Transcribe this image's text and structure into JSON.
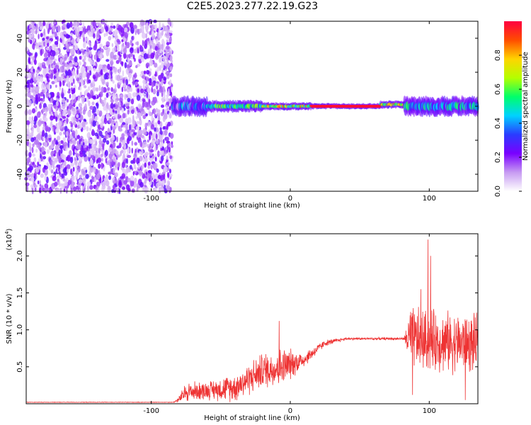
{
  "title": "C2E5.2023.277.22.19.G23",
  "chart_data": [
    {
      "type": "heatmap",
      "xlabel": "Height of straight line (km)",
      "ylabel": "Frequency (Hz)",
      "xlim": [
        -190,
        135
      ],
      "ylim": [
        -50,
        50
      ],
      "xticks": [
        -100,
        0,
        100
      ],
      "xtick_labels": [
        "-100",
        "0",
        "100"
      ],
      "yticks": [
        -40,
        -20,
        0,
        20,
        40
      ],
      "ytick_labels": [
        "-40",
        "-20",
        "0",
        "20",
        "40"
      ],
      "colorbar": {
        "label": "Normalized spectral amplitude",
        "range": [
          0,
          1
        ],
        "ticks": [
          0,
          0.2,
          0.4,
          0.6,
          0.8
        ],
        "tick_labels": [
          "0.0",
          "0.2",
          "0.4",
          "0.6",
          "0.8"
        ],
        "colormap": [
          "#ffffff",
          "#c79bf2",
          "#7a00ff",
          "#2a3cff",
          "#00d2ff",
          "#00ff6a",
          "#b4ff00",
          "#ffd400",
          "#ff4d00",
          "#ff0040"
        ]
      },
      "regions": [
        {
          "x": [
            -190,
            -85
          ],
          "freq_center": 0,
          "freq_halfwidth": 50,
          "amplitude": "0.05-0.25 noise"
        },
        {
          "x": [
            -85,
            -60
          ],
          "freq_center": 0,
          "freq_halfwidth": 5,
          "amplitude": "0.1-0.5"
        },
        {
          "x": [
            -60,
            -20
          ],
          "freq_center": 0,
          "freq_halfwidth": 3,
          "amplitude": "0.3-0.7"
        },
        {
          "x": [
            -20,
            15
          ],
          "freq_center": 0,
          "freq_halfwidth": 2,
          "amplitude": "0.4-0.9"
        },
        {
          "x": [
            15,
            65
          ],
          "freq_center": 0,
          "freq_halfwidth": 1.5,
          "amplitude": "0.9-1.0"
        },
        {
          "x": [
            65,
            82
          ],
          "freq_center": 1,
          "freq_halfwidth": 2,
          "amplitude": "0.4-0.9"
        },
        {
          "x": [
            82,
            135
          ],
          "freq_center": 0,
          "freq_halfwidth": 5,
          "amplitude": "0.2-0.6"
        }
      ]
    },
    {
      "type": "line",
      "xlabel": "Height of straight line (km)",
      "ylabel": "SNR (10 * v/v)",
      "y_multiplier": "(x10",
      "y_multiplier_exp": "4",
      "y_multiplier_close": ")",
      "xlim": [
        -190,
        135
      ],
      "ylim": [
        0,
        2.3
      ],
      "xticks": [
        -100,
        0,
        100
      ],
      "xtick_labels": [
        "-100",
        "0",
        "100"
      ],
      "yticks": [
        0.5,
        1.0,
        1.5,
        2.0
      ],
      "ytick_labels": [
        "0.5",
        "1.0",
        "1.5",
        "2.0"
      ],
      "line_color": "#ee3333",
      "series_profile": [
        {
          "x": -190,
          "mean": 0.02,
          "noise": 0.004
        },
        {
          "x": -84,
          "mean": 0.02,
          "noise": 0.004
        },
        {
          "x": -80,
          "mean": 0.06,
          "noise": 0.05
        },
        {
          "x": -75,
          "mean": 0.16,
          "noise": 0.16
        },
        {
          "x": -60,
          "mean": 0.18,
          "noise": 0.14
        },
        {
          "x": -40,
          "mean": 0.22,
          "noise": 0.22
        },
        {
          "x": -20,
          "mean": 0.45,
          "noise": 0.28
        },
        {
          "x": -5,
          "mean": 0.5,
          "noise": 0.3
        },
        {
          "x": 10,
          "mean": 0.6,
          "noise": 0.12
        },
        {
          "x": 25,
          "mean": 0.82,
          "noise": 0.05
        },
        {
          "x": 40,
          "mean": 0.88,
          "noise": 0.02
        },
        {
          "x": 82,
          "mean": 0.88,
          "noise": 0.02
        },
        {
          "x": 86,
          "mean": 0.88,
          "noise": 0.5
        },
        {
          "x": 135,
          "mean": 0.8,
          "noise": 0.45
        }
      ],
      "spikes": [
        {
          "x": -8,
          "y": 1.12
        },
        {
          "x": 99,
          "y": 2.22
        },
        {
          "x": 101,
          "y": 2.0
        },
        {
          "x": 94,
          "y": 1.55
        },
        {
          "x": 126,
          "y": 0.05
        },
        {
          "x": 88,
          "y": 0.12
        }
      ]
    }
  ]
}
